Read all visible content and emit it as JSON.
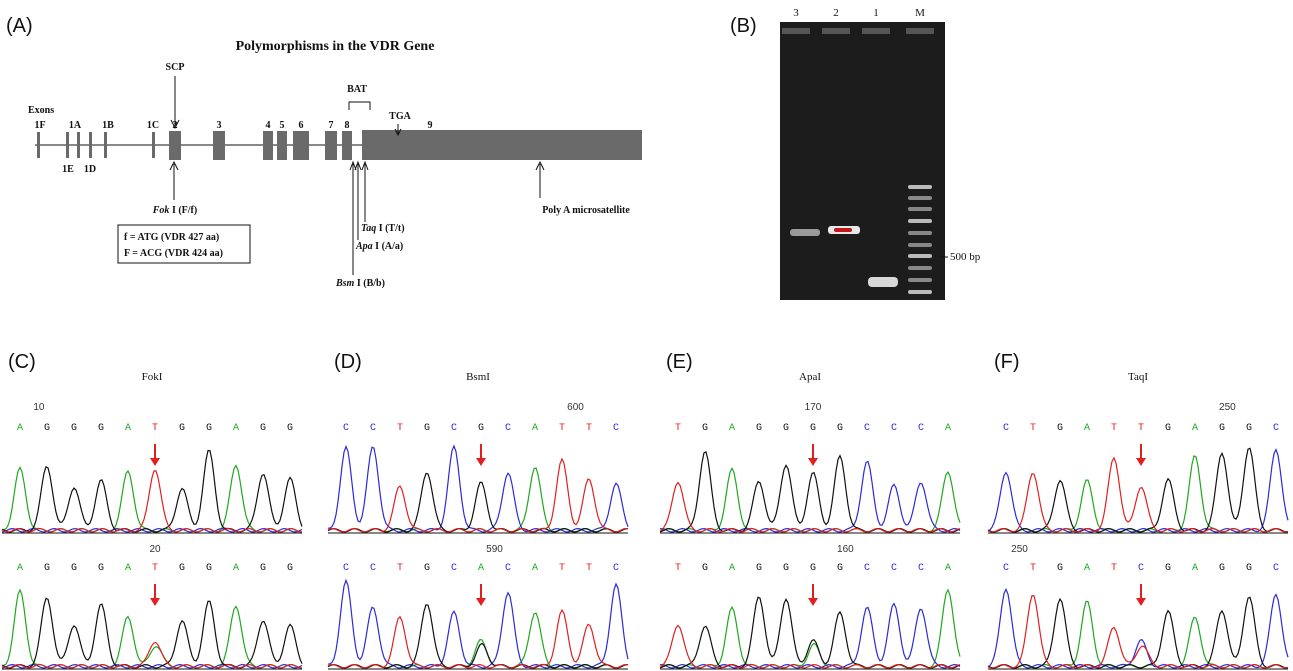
{
  "panel_a": {
    "label": "(A)",
    "title": "Polymorphisms in the VDR Gene",
    "exons_label": "Exons",
    "exon_labels_top": [
      "1F",
      "1A",
      "1B",
      "1C",
      "2",
      "3",
      "4",
      "5",
      "6",
      "7",
      "8",
      "9"
    ],
    "exon_labels_bottom": [
      "1E",
      "1D"
    ],
    "scp": "SCP",
    "bat": "BAT",
    "tga": "TGA",
    "fok": {
      "enzyme": "Fok",
      "rest": " I (F/f)"
    },
    "box_lines": [
      "f = ATG (VDR 427 aa)",
      "F = ACG (VDR 424 aa)"
    ],
    "taq": {
      "enzyme": "Taq",
      "rest": " I (T/t)"
    },
    "apa": {
      "enzyme": "Apa",
      "rest": " I (A/a)"
    },
    "bsm": {
      "enzyme": "Bsm",
      "rest": " I (B/b)"
    },
    "poly_a": "Poly A microsatellite"
  },
  "panel_b": {
    "label": "(B)",
    "lanes": [
      "3",
      "2",
      "1",
      "M"
    ],
    "marker": "500 bp"
  },
  "base_colors": {
    "A": "#1fa81f",
    "C": "#2b2bd8",
    "G": "#111111",
    "T": "#e02020"
  },
  "traces": [
    {
      "label": "(C)",
      "title": "FokI",
      "top": {
        "position": "10",
        "bases": [
          "A",
          "G",
          "G",
          "G",
          "A",
          "T",
          "G",
          "G",
          "A",
          "G",
          "G"
        ]
      },
      "bottom": {
        "position": "20",
        "bases": [
          "A",
          "G",
          "G",
          "G",
          "A",
          "T",
          "G",
          "G",
          "A",
          "G",
          "G"
        ]
      }
    },
    {
      "label": "(D)",
      "title": "BsmI",
      "top": {
        "position": "600",
        "bases": [
          "C",
          "C",
          "T",
          "G",
          "C",
          "G",
          "C",
          "A",
          "T",
          "T",
          "C"
        ]
      },
      "bottom": {
        "position": "590",
        "bases": [
          "C",
          "C",
          "T",
          "G",
          "C",
          "A",
          "C",
          "A",
          "T",
          "T",
          "C"
        ]
      }
    },
    {
      "label": "(E)",
      "title": "ApaI",
      "top": {
        "position": "170",
        "bases": [
          "T",
          "G",
          "A",
          "G",
          "G",
          "G",
          "G",
          "C",
          "C",
          "C",
          "A"
        ]
      },
      "bottom": {
        "position": "160",
        "bases": [
          "T",
          "G",
          "A",
          "G",
          "G",
          "G",
          "G",
          "C",
          "C",
          "C",
          "A"
        ]
      }
    },
    {
      "label": "(F)",
      "title": "TaqI",
      "top": {
        "position": "250",
        "bases": [
          "C",
          "T",
          "G",
          "A",
          "T",
          "T",
          "G",
          "A",
          "G",
          "G",
          "C"
        ]
      },
      "bottom": {
        "position": "250",
        "bases": [
          "C",
          "T",
          "G",
          "A",
          "T",
          "C",
          "G",
          "A",
          "G",
          "G",
          "C"
        ]
      }
    }
  ]
}
